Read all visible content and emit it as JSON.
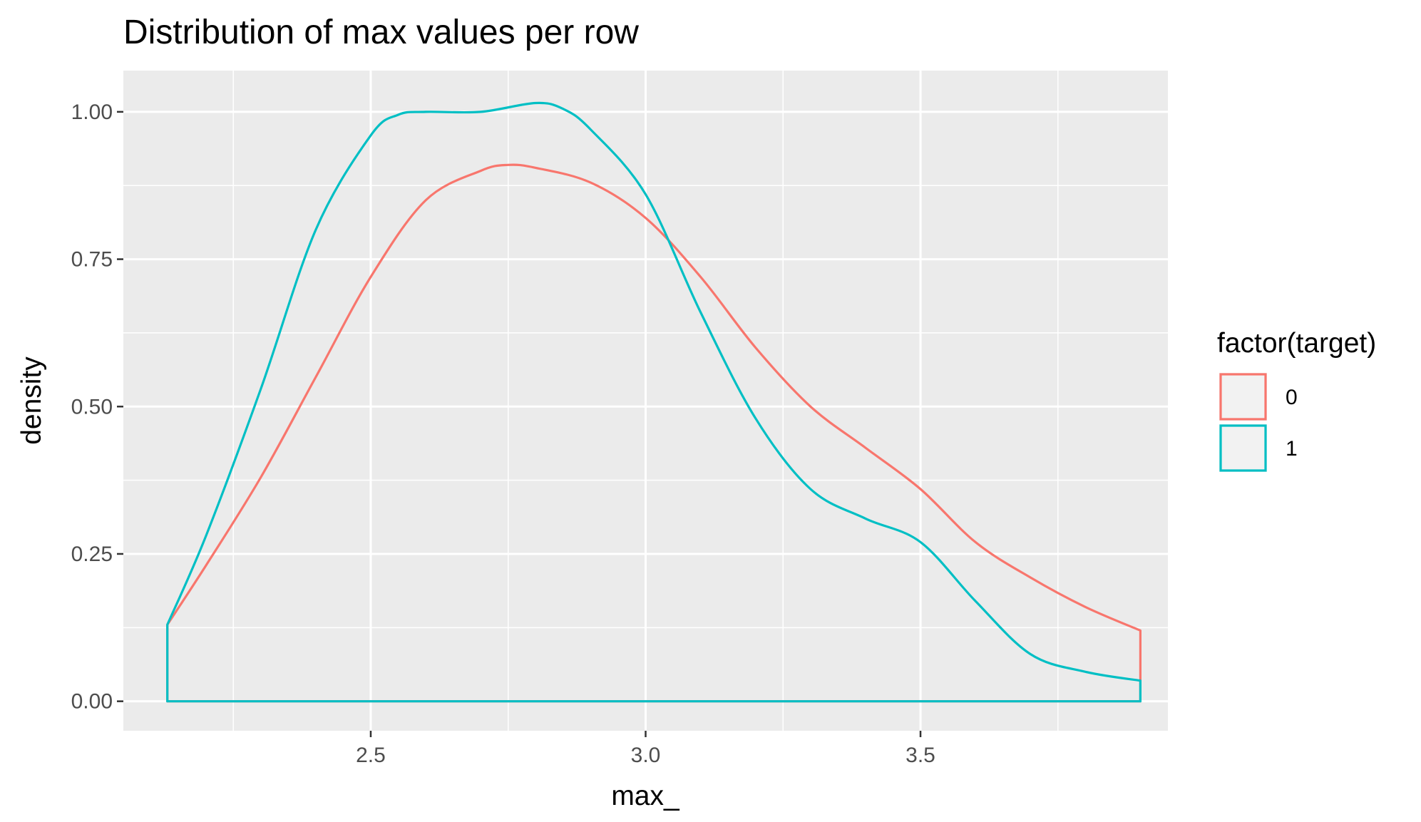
{
  "chart_data": {
    "type": "line",
    "title": "Distribution of max values per row",
    "xlabel": "max_",
    "ylabel": "density",
    "xlim": [
      2.05,
      3.95
    ],
    "ylim": [
      -0.05,
      1.07
    ],
    "x_ticks": [
      2.5,
      3.0,
      3.5
    ],
    "x_tick_labels": [
      "2.5",
      "3.0",
      "3.5"
    ],
    "x_minor_ticks": [
      2.25,
      2.75,
      3.25,
      3.75
    ],
    "y_ticks": [
      0,
      0.25,
      0.5,
      0.75,
      1.0
    ],
    "y_tick_labels": [
      "0.00",
      "0.25",
      "0.50",
      "0.75",
      "1.00"
    ],
    "y_minor_ticks": [
      0.125,
      0.375,
      0.625,
      0.875
    ],
    "grid": true,
    "background": "#ebebeb",
    "legend": {
      "title": "factor(target)",
      "position": "right"
    },
    "series": [
      {
        "name": "0",
        "color": "#F8766D",
        "x": [
          2.13,
          2.2,
          2.3,
          2.4,
          2.5,
          2.6,
          2.7,
          2.75,
          2.8,
          2.9,
          3.0,
          3.1,
          3.2,
          3.3,
          3.4,
          3.5,
          3.6,
          3.7,
          3.8,
          3.9
        ],
        "y": [
          0.13,
          0.23,
          0.38,
          0.55,
          0.72,
          0.85,
          0.9,
          0.91,
          0.905,
          0.88,
          0.82,
          0.72,
          0.6,
          0.5,
          0.43,
          0.36,
          0.27,
          0.21,
          0.16,
          0.12
        ]
      },
      {
        "name": "1",
        "color": "#00BFC4",
        "x": [
          2.13,
          2.2,
          2.3,
          2.4,
          2.5,
          2.55,
          2.6,
          2.7,
          2.8,
          2.85,
          2.9,
          3.0,
          3.1,
          3.2,
          3.3,
          3.4,
          3.5,
          3.6,
          3.7,
          3.8,
          3.9
        ],
        "y": [
          0.13,
          0.28,
          0.53,
          0.8,
          0.96,
          0.995,
          1.0,
          1.0,
          1.015,
          1.005,
          0.97,
          0.86,
          0.66,
          0.48,
          0.36,
          0.31,
          0.27,
          0.17,
          0.08,
          0.05,
          0.035
        ]
      }
    ]
  }
}
